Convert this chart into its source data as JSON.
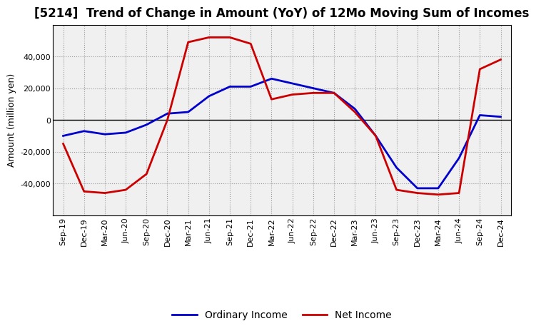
{
  "title": "[5214]  Trend of Change in Amount (YoY) of 12Mo Moving Sum of Incomes",
  "ylabel": "Amount (million yen)",
  "x_labels": [
    "Sep-19",
    "Dec-19",
    "Mar-20",
    "Jun-20",
    "Sep-20",
    "Dec-20",
    "Mar-21",
    "Jun-21",
    "Sep-21",
    "Dec-21",
    "Mar-22",
    "Jun-22",
    "Sep-22",
    "Dec-22",
    "Mar-23",
    "Jun-23",
    "Sep-23",
    "Dec-23",
    "Mar-24",
    "Jun-24",
    "Sep-24",
    "Dec-24"
  ],
  "ordinary_income": [
    -10000,
    -7000,
    -9000,
    -8000,
    -3000,
    4000,
    5000,
    15000,
    21000,
    21000,
    26000,
    23000,
    20000,
    17000,
    7000,
    -10000,
    -30000,
    -43000,
    -43000,
    -24000,
    3000,
    2000
  ],
  "net_income": [
    -15000,
    -45000,
    -46000,
    -44000,
    -34000,
    0,
    49000,
    52000,
    52000,
    48000,
    13000,
    16000,
    17000,
    17000,
    5000,
    -10000,
    -44000,
    -46000,
    -47000,
    -46000,
    32000,
    38000
  ],
  "ordinary_color": "#0000cc",
  "net_color": "#cc0000",
  "line_width": 2.0,
  "ylim": [
    -60000,
    60000
  ],
  "yticks": [
    -40000,
    -20000,
    0,
    20000,
    40000
  ],
  "grid_color": "#999999",
  "plot_bg_color": "#f0f0f0",
  "fig_bg_color": "#ffffff",
  "legend_labels": [
    "Ordinary Income",
    "Net Income"
  ],
  "title_fontsize": 12,
  "ylabel_fontsize": 9,
  "tick_fontsize": 8,
  "legend_fontsize": 10
}
